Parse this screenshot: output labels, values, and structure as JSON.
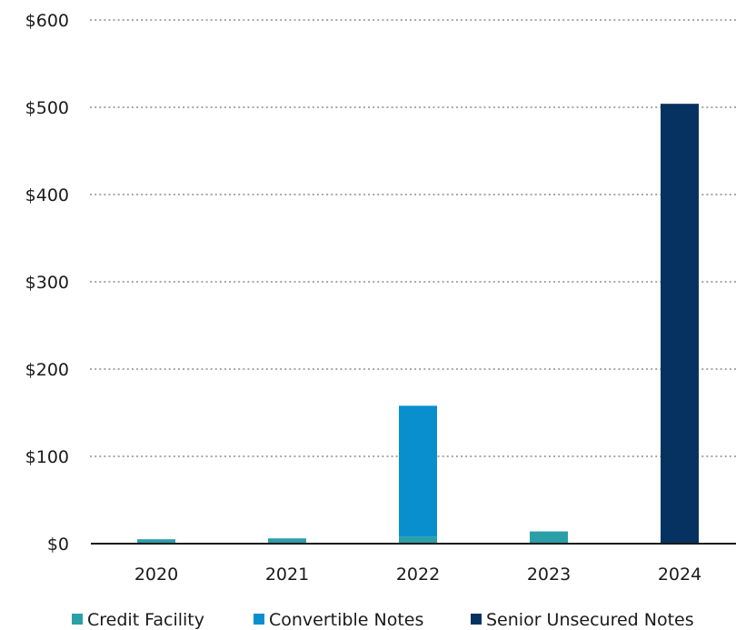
{
  "chart_data": {
    "type": "bar",
    "stacked": true,
    "categories": [
      "2020",
      "2021",
      "2022",
      "2023",
      "2024"
    ],
    "series": [
      {
        "name": "Credit Facility",
        "color": "#2A9FA8",
        "values": [
          5,
          6,
          8,
          14,
          0
        ]
      },
      {
        "name": "Convertible Notes",
        "color": "#0A8FCE",
        "values": [
          0,
          0,
          150,
          0,
          0
        ]
      },
      {
        "name": "Senior Unsecured Notes",
        "color": "#063262",
        "values": [
          0,
          0,
          0,
          0,
          504
        ]
      }
    ],
    "y_ticks": [
      "$0",
      "$100",
      "$200",
      "$300",
      "$400",
      "$500",
      "$600"
    ],
    "ylim": [
      0,
      600
    ],
    "grid": "dotted horizontal",
    "legend_position": "bottom"
  }
}
